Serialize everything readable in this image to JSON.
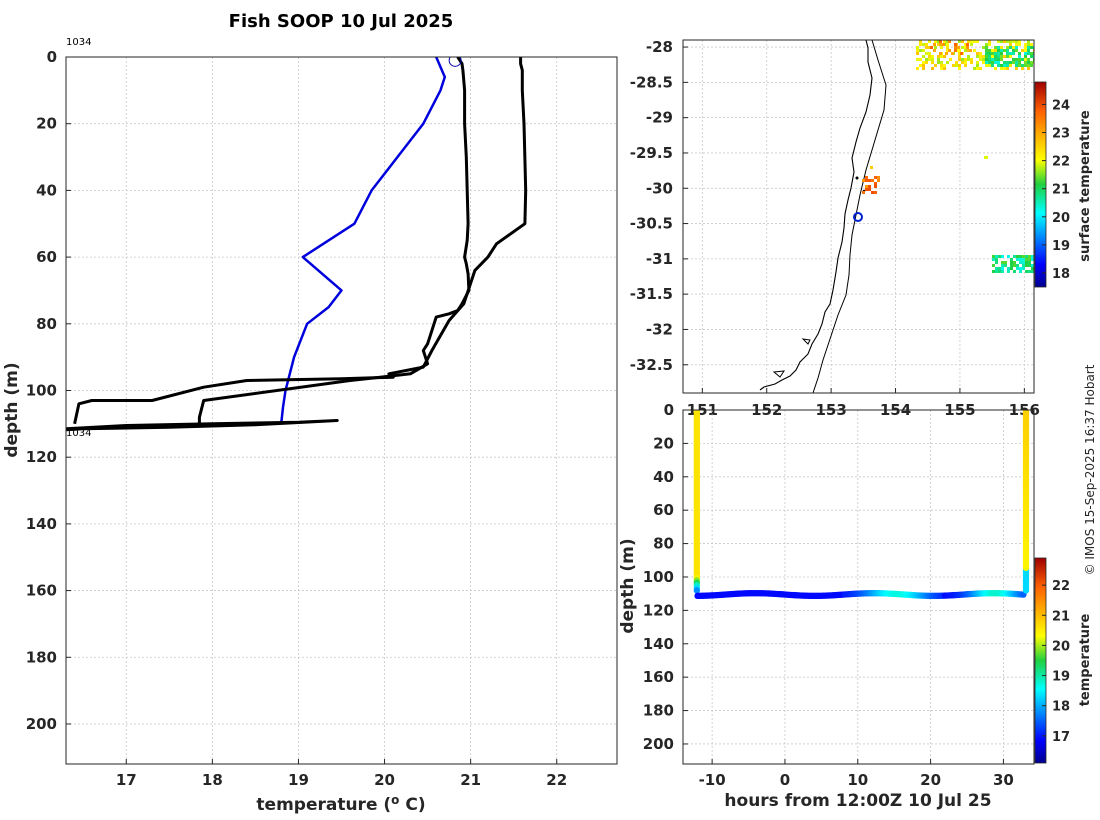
{
  "title": "Fish SOOP 10 Jul 2025",
  "credit": "© IMOS 15-Sep-2025 16:37 Hobart",
  "profile_id_top": "1034",
  "profile_id_bottom": "1034",
  "chart_data": [
    {
      "type": "line",
      "name": "temperature-profile",
      "xlabel": "temperature (° C)",
      "ylabel": "depth (m)",
      "xlim": [
        16.3,
        22.7
      ],
      "ylim": [
        0,
        212
      ],
      "y_reversed": true,
      "xticks": [
        "17",
        "18",
        "19",
        "20",
        "21",
        "22"
      ],
      "yticks": [
        "0",
        "20",
        "40",
        "60",
        "80",
        "100",
        "120",
        "140",
        "160",
        "180",
        "200"
      ],
      "series": [
        {
          "name": "mean-profile",
          "color": "#0000dd",
          "x": [
            20.6,
            20.7,
            20.65,
            20.45,
            20.15,
            19.85,
            19.65,
            19.05,
            19.5,
            19.35,
            19.1,
            18.95,
            18.85,
            18.82,
            18.8
          ],
          "y": [
            0,
            6,
            10,
            20,
            30,
            40,
            50,
            60,
            70,
            75,
            80,
            90,
            100,
            105,
            110
          ]
        },
        {
          "name": "downcast",
          "color": "#000000",
          "x": [
            20.85,
            20.9,
            20.91,
            20.93,
            20.93,
            20.95,
            20.96,
            20.97,
            20.96,
            20.93,
            20.95,
            20.97,
            20.98,
            20.94,
            20.9,
            20.85,
            20.75,
            20.6,
            20.55,
            20.5,
            20.45,
            20.5,
            20.3,
            19.95,
            19.6,
            17.9,
            17.85,
            17.85
          ],
          "y": [
            0,
            2,
            4,
            10,
            20,
            30,
            40,
            50,
            55,
            60,
            62,
            65,
            70,
            72,
            74,
            76,
            77,
            78,
            82,
            86,
            88,
            92,
            95,
            96,
            97,
            103,
            108,
            111
          ]
        },
        {
          "name": "upcast",
          "color": "#000000",
          "x": [
            16.4,
            16.45,
            16.6,
            17.3,
            17.9,
            18.4,
            19.5,
            20.1,
            20.05,
            20.45,
            20.55,
            20.75,
            20.92,
            21.05,
            21.2,
            21.3,
            21.63,
            21.64,
            21.62,
            21.6,
            21.6,
            21.58,
            21.58
          ],
          "y": [
            110,
            104,
            103,
            103,
            99,
            97,
            96.5,
            96,
            95,
            93,
            88,
            79,
            74,
            64,
            60,
            56,
            50,
            40,
            20,
            10,
            4,
            2,
            0
          ]
        },
        {
          "name": "bottom-trace",
          "color": "#000000",
          "x": [
            16.3,
            17.0,
            18.0,
            19.0,
            19.45,
            18.5,
            17.5,
            16.5,
            16.3
          ],
          "y": [
            111.5,
            110.5,
            110,
            109.5,
            109,
            110.3,
            111,
            111.5,
            111.8
          ]
        }
      ],
      "marker": {
        "x": 20.82,
        "y": 1
      }
    },
    {
      "type": "heatmap",
      "name": "surface-temperature-map",
      "xticks": [
        "151",
        "152",
        "153",
        "154",
        "155",
        "156"
      ],
      "yticks": [
        "-28",
        "-28.5",
        "-29",
        "-29.5",
        "-30",
        "-30.5",
        "-31",
        "-31.5",
        "-32",
        "-32.5"
      ],
      "xlim": [
        150.7,
        156.15
      ],
      "ylim": [
        -32.9,
        -27.9
      ],
      "colorbar_label": "surface temperature",
      "colorbar_ticks": [
        "18",
        "19",
        "20",
        "21",
        "22",
        "23",
        "24"
      ],
      "colorbar_range": [
        17.5,
        24.8
      ],
      "position_marker": {
        "lon": 153.3,
        "lat": -30.42
      }
    },
    {
      "type": "scatter",
      "name": "depth-time-section",
      "xlabel": "hours from 12:00Z 10 Jul 25",
      "ylabel": "depth (m)",
      "xlim": [
        -14,
        34.2
      ],
      "ylim": [
        0,
        212
      ],
      "y_reversed": true,
      "xticks": [
        "-10",
        "0",
        "10",
        "20",
        "30"
      ],
      "yticks": [
        "0",
        "20",
        "40",
        "60",
        "80",
        "100",
        "120",
        "140",
        "160",
        "180",
        "200"
      ],
      "colorbar_label": "temperature",
      "colorbar_ticks": [
        "17",
        "18",
        "19",
        "20",
        "21",
        "22"
      ],
      "colorbar_range": [
        16.1,
        22.9
      ]
    }
  ]
}
